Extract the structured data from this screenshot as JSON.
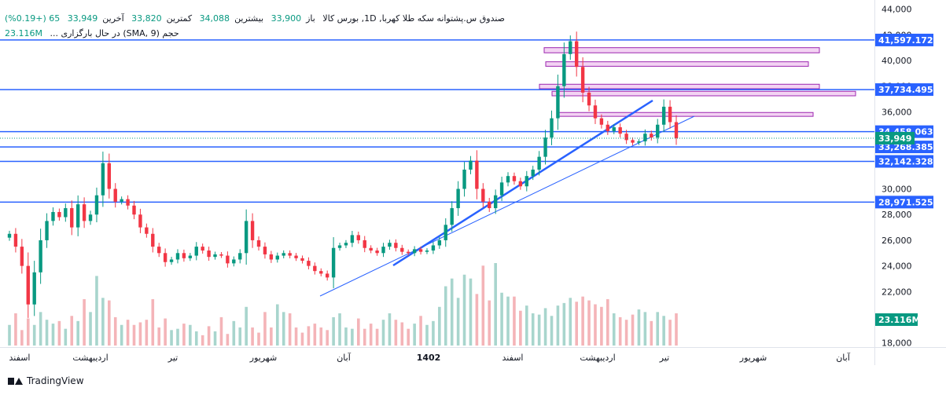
{
  "legend": {
    "title_line": "صندوق س.پشتوانه سکه طلا کهربا, 1D, بورس کالا",
    "open_label": "باز",
    "open_value": "33,900",
    "high_label": "بیشترین",
    "high_value": "34,088",
    "low_label": "کمترین",
    "low_value": "33,820",
    "close_label": "آخرین",
    "close_value": "33,949",
    "change_value": "65 (+0.19%)",
    "volume_line": "حجم (SMA, 9) در حال بارگزاری ...",
    "volume_value": "23.116M"
  },
  "footer": {
    "brand": "TradingView"
  },
  "colors": {
    "up": "#089981",
    "down": "#f23645",
    "vol_up": "#a8d5cd",
    "vol_down": "#f4b4b8",
    "hline": "#2962ff",
    "trend": "#2962ff",
    "zone_border": "#9c27b0",
    "zone_fill": "#f3d3f3",
    "label_bg": "#2962ff",
    "price_label_bg": "#089981"
  },
  "chart_data": {
    "type": "candlestick",
    "x_tick_labels": [
      "اسفند",
      "اردیبهشت",
      "تیر",
      "شهریور",
      "آبان",
      "1402",
      "اسفند",
      "اردیبهشت",
      "تیر",
      "شهریور",
      "آبان"
    ],
    "y_ticks": [
      "44,000",
      "42,000",
      "40,000",
      "38,000",
      "36,000",
      "34,000",
      "32,000",
      "30,000",
      "28,000",
      "26,000",
      "24,000",
      "22,000",
      "20,000",
      "18,000"
    ],
    "y_range": [
      17800,
      44100
    ],
    "horizontal_lines": [
      {
        "value": 41597.172,
        "label": "41,597.172"
      },
      {
        "value": 37734.495,
        "label": "37,734.495"
      },
      {
        "value": 34458.063,
        "label": "34,458.063"
      },
      {
        "value": 33268.385,
        "label": "33,268.385"
      },
      {
        "value": 32142.328,
        "label": "32,142.328"
      },
      {
        "value": 28971.525,
        "label": "28,971.525"
      }
    ],
    "last_price": {
      "value": 33949,
      "label": "33,949"
    },
    "volume_label": "23.116M",
    "close_series": [
      26500,
      25500,
      24000,
      21000,
      23500,
      26000,
      27500,
      28200,
      27800,
      28500,
      27000,
      28800,
      27500,
      28000,
      29500,
      32000,
      30000,
      29000,
      29200,
      28700,
      28000,
      27000,
      26500,
      25500,
      25000,
      24300,
      24500,
      25000,
      24600,
      24800,
      25500,
      25200,
      24700,
      24900,
      24800,
      24200,
      24500,
      25000,
      27500,
      26000,
      25500,
      24900,
      24500,
      24800,
      25000,
      24800,
      24600,
      24400,
      24000,
      23600,
      23400,
      23100,
      25400,
      25600,
      25800,
      26400,
      26000,
      25400,
      25200,
      25000,
      25500,
      25800,
      25400,
      25100,
      25000,
      25300,
      25100,
      25200,
      25600,
      26000,
      27200,
      28500,
      30000,
      31500,
      32200,
      30000,
      29000,
      28500,
      29500,
      30500,
      31000,
      30600,
      30200,
      31000,
      31500,
      32500,
      34000,
      35500,
      38000,
      40500,
      41500,
      39500,
      37500,
      36500,
      35500,
      35000,
      34500,
      34800,
      34300,
      33800,
      33600,
      33700,
      34300,
      34000,
      35000,
      36400,
      35200,
      33949
    ],
    "volume_series": [
      1.6,
      2.5,
      1.2,
      2.1,
      1.6,
      2.6,
      2.0,
      1.7,
      1.9,
      1.3,
      2.3,
      1.9,
      3.6,
      2.6,
      5.4,
      3.7,
      3.5,
      2.2,
      1.6,
      2.0,
      1.6,
      1.8,
      2.0,
      3.6,
      1.4,
      2.1,
      1.2,
      1.3,
      1.7,
      1.6,
      1.1,
      0.8,
      1.5,
      1.1,
      2.2,
      0.9,
      1.9,
      1.4,
      3.0,
      1.4,
      1.0,
      2.6,
      1.4,
      3.2,
      2.6,
      2.5,
      1.4,
      1.0,
      1.5,
      1.7,
      1.4,
      1.2,
      2.2,
      2.5,
      1.4,
      1.3,
      2.1,
      1.3,
      1.7,
      1.3,
      2.0,
      2.5,
      2.0,
      1.8,
      1.3,
      1.7,
      2.3,
      1.6,
      1.9,
      3.0,
      4.6,
      5.2,
      3.7,
      5.5,
      5.2,
      4.0,
      6.2,
      3.5,
      6.4,
      4.1,
      3.8,
      3.8,
      2.7,
      3.1,
      2.5,
      2.4,
      2.9,
      2.3,
      3.1,
      3.3,
      3.7,
      3.4,
      3.8,
      3.5,
      3.2,
      3.0,
      3.6,
      2.5,
      2.2,
      2.0,
      2.4,
      2.8,
      2.6,
      1.9,
      2.6,
      2.3,
      2.0,
      2.5
    ]
  }
}
